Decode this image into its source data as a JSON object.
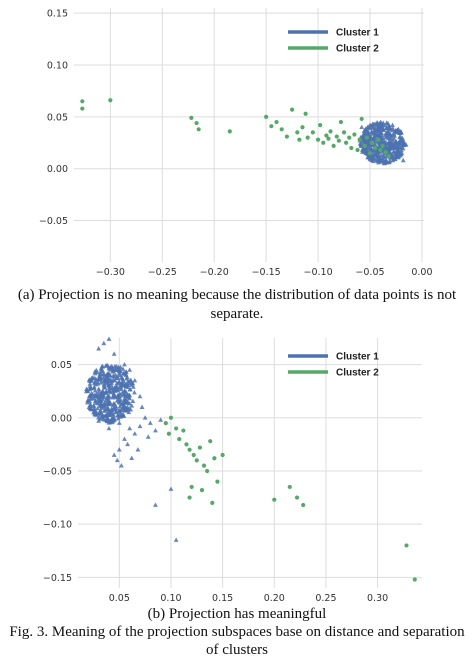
{
  "colors": {
    "cluster1": "#4c72b0",
    "cluster2": "#55a868",
    "grid": "#dddddd",
    "tick": "#333333"
  },
  "captions": {
    "a_line1": "(a) Projection is no meaning because the distribution of data points is not",
    "a_line2": "separate.",
    "b_line1": "(b) Projection has meaningful",
    "fig_line1": "Fig. 3. Meaning of the projection subspaces base on distance and separation",
    "fig_line2": "of clusters"
  },
  "chart_data": [
    {
      "type": "scatter",
      "title": "",
      "xlabel": "",
      "ylabel": "",
      "xlim": [
        -0.335,
        0.002
      ],
      "ylim": [
        -0.09,
        0.155
      ],
      "xticks": [
        -0.3,
        -0.25,
        -0.2,
        -0.15,
        -0.1,
        -0.05,
        0.0
      ],
      "xtick_labels": [
        "−0.30",
        "−0.25",
        "−0.20",
        "−0.15",
        "−0.10",
        "−0.05",
        "0.00"
      ],
      "yticks": [
        -0.05,
        0.0,
        0.05,
        0.1,
        0.15
      ],
      "ytick_labels": [
        "−0.05",
        "0.00",
        "0.05",
        "0.10",
        "0.15"
      ],
      "grid": true,
      "legend_position": "top-right",
      "series": [
        {
          "name": "Cluster 1",
          "marker": "triangle",
          "dense_cloud": {
            "x_range": [
              -0.06,
              -0.015
            ],
            "y_range": [
              0.005,
              0.045
            ]
          },
          "points": [
            [
              -0.058,
              0.04
            ],
            [
              -0.05,
              0.042
            ],
            [
              -0.045,
              0.038
            ],
            [
              -0.04,
              0.035
            ],
            [
              -0.035,
              0.03
            ],
            [
              -0.03,
              0.026
            ],
            [
              -0.025,
              0.02
            ],
            [
              -0.02,
              0.014
            ],
            [
              -0.018,
              0.008
            ],
            [
              -0.048,
              0.012
            ],
            [
              -0.052,
              0.02
            ],
            [
              -0.038,
              0.01
            ],
            [
              -0.028,
              0.008
            ],
            [
              -0.022,
              0.024
            ],
            [
              -0.042,
              0.026
            ],
            [
              -0.055,
              0.032
            ]
          ]
        },
        {
          "name": "Cluster 2",
          "marker": "circle",
          "points": [
            [
              -0.327,
              0.065
            ],
            [
              -0.327,
              0.058
            ],
            [
              -0.3,
              0.066
            ],
            [
              -0.222,
              0.049
            ],
            [
              -0.217,
              0.044
            ],
            [
              -0.215,
              0.038
            ],
            [
              -0.185,
              0.036
            ],
            [
              -0.15,
              0.05
            ],
            [
              -0.145,
              0.041
            ],
            [
              -0.14,
              0.045
            ],
            [
              -0.135,
              0.038
            ],
            [
              -0.13,
              0.031
            ],
            [
              -0.125,
              0.057
            ],
            [
              -0.12,
              0.035
            ],
            [
              -0.118,
              0.028
            ],
            [
              -0.115,
              0.04
            ],
            [
              -0.112,
              0.053
            ],
            [
              -0.11,
              0.03
            ],
            [
              -0.105,
              0.035
            ],
            [
              -0.1,
              0.028
            ],
            [
              -0.098,
              0.042
            ],
            [
              -0.095,
              0.025
            ],
            [
              -0.092,
              0.032
            ],
            [
              -0.09,
              0.029
            ],
            [
              -0.088,
              0.036
            ],
            [
              -0.085,
              0.022
            ],
            [
              -0.082,
              0.031
            ],
            [
              -0.08,
              0.027
            ],
            [
              -0.078,
              0.045
            ],
            [
              -0.075,
              0.035
            ],
            [
              -0.073,
              0.025
            ],
            [
              -0.07,
              0.03
            ],
            [
              -0.068,
              0.02
            ],
            [
              -0.065,
              0.033
            ],
            [
              -0.062,
              0.018
            ],
            [
              -0.06,
              0.028
            ],
            [
              -0.058,
              0.048
            ],
            [
              -0.055,
              0.022
            ],
            [
              -0.053,
              0.03
            ],
            [
              -0.05,
              0.015
            ],
            [
              -0.048,
              0.025
            ],
            [
              -0.045,
              0.02
            ],
            [
              -0.042,
              0.028
            ],
            [
              -0.04,
              0.018
            ],
            [
              -0.038,
              0.022
            ],
            [
              -0.035,
              0.016
            ],
            [
              -0.032,
              0.012
            ]
          ]
        }
      ]
    },
    {
      "type": "scatter",
      "title": "",
      "xlabel": "",
      "ylabel": "",
      "xlim": [
        0.01,
        0.343
      ],
      "ylim": [
        -0.16,
        0.075
      ],
      "xticks": [
        0.05,
        0.1,
        0.15,
        0.2,
        0.25,
        0.3
      ],
      "xtick_labels": [
        "0.05",
        "0.10",
        "0.15",
        "0.20",
        "0.25",
        "0.30"
      ],
      "yticks": [
        -0.15,
        -0.1,
        -0.05,
        0.0,
        0.05
      ],
      "ytick_labels": [
        "−0.15",
        "−0.10",
        "−0.05",
        "0.00",
        "0.05"
      ],
      "grid": true,
      "legend_position": "top-right",
      "series": [
        {
          "name": "Cluster 1",
          "marker": "triangle",
          "dense_cloud": {
            "x_range": [
              0.018,
              0.065
            ],
            "y_range": [
              -0.005,
              0.05
            ]
          },
          "points": [
            [
              0.04,
              0.074
            ],
            [
              0.035,
              0.07
            ],
            [
              0.03,
              0.065
            ],
            [
              0.045,
              0.06
            ],
            [
              0.055,
              0.05
            ],
            [
              0.06,
              0.045
            ],
            [
              0.065,
              0.035
            ],
            [
              0.07,
              0.02
            ],
            [
              0.072,
              0.01
            ],
            [
              0.075,
              0.0
            ],
            [
              0.08,
              -0.005
            ],
            [
              0.06,
              -0.01
            ],
            [
              0.055,
              -0.02
            ],
            [
              0.05,
              -0.03
            ],
            [
              0.045,
              -0.035
            ],
            [
              0.048,
              -0.04
            ],
            [
              0.052,
              -0.045
            ],
            [
              0.058,
              -0.025
            ],
            [
              0.065,
              -0.015
            ],
            [
              0.07,
              -0.008
            ],
            [
              0.085,
              -0.012
            ],
            [
              0.078,
              -0.018
            ],
            [
              0.068,
              -0.03
            ],
            [
              0.062,
              -0.038
            ],
            [
              0.09,
              -0.002
            ],
            [
              0.085,
              -0.082
            ],
            [
              0.1,
              -0.067
            ],
            [
              0.105,
              -0.115
            ],
            [
              0.03,
              -0.003
            ],
            [
              0.025,
              0.005
            ],
            [
              0.04,
              -0.01
            ],
            [
              0.05,
              -0.005
            ]
          ]
        },
        {
          "name": "Cluster 2",
          "marker": "circle",
          "points": [
            [
              0.095,
              -0.005
            ],
            [
              0.1,
              0.0
            ],
            [
              0.105,
              -0.01
            ],
            [
              0.098,
              -0.015
            ],
            [
              0.108,
              -0.02
            ],
            [
              0.112,
              -0.012
            ],
            [
              0.115,
              -0.025
            ],
            [
              0.118,
              -0.03
            ],
            [
              0.122,
              -0.035
            ],
            [
              0.125,
              -0.04
            ],
            [
              0.128,
              -0.028
            ],
            [
              0.132,
              -0.045
            ],
            [
              0.135,
              -0.05
            ],
            [
              0.138,
              -0.022
            ],
            [
              0.142,
              -0.038
            ],
            [
              0.145,
              -0.06
            ],
            [
              0.15,
              -0.035
            ],
            [
              0.12,
              -0.065
            ],
            [
              0.13,
              -0.068
            ],
            [
              0.118,
              -0.075
            ],
            [
              0.14,
              -0.08
            ],
            [
              0.2,
              -0.077
            ],
            [
              0.215,
              -0.065
            ],
            [
              0.222,
              -0.075
            ],
            [
              0.228,
              -0.082
            ],
            [
              0.328,
              -0.12
            ],
            [
              0.336,
              -0.152
            ]
          ]
        }
      ]
    }
  ]
}
